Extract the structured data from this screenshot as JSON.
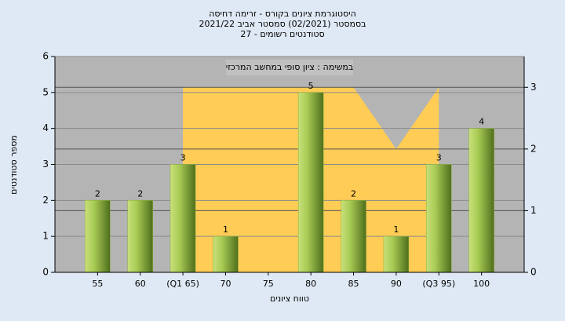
{
  "chart_data": {
    "type": "bar",
    "title": [
      "היסטוגרמת ציונים בקורס - זרימה דחיסה",
      "בסמסטר  (02/2021)  סמסטר אביב 2021/22",
      "סטודנטים רשומים - 27"
    ],
    "annotation": "במשימה : ציון סופי במחשב המרכזי",
    "x_label": "טווח ציונים",
    "y_label": "מספר סטודנטים",
    "categories": [
      "55",
      "60",
      "(Q1 65)",
      "70",
      "75",
      "80",
      "85",
      "90",
      "(Q3 95)",
      "100"
    ],
    "series": [
      {
        "type": "bar",
        "color": "#8fb43a",
        "values": [
          2,
          2,
          3,
          1,
          null,
          5,
          2,
          1,
          3,
          4
        ]
      },
      {
        "type": "area",
        "axis": "y2",
        "color": "#ffcc55",
        "values": [
          null,
          null,
          3,
          3,
          3,
          3,
          3,
          2,
          3,
          null
        ]
      }
    ],
    "ylim": [
      0,
      6
    ],
    "yticks": [
      0,
      1,
      2,
      3,
      4,
      5,
      6
    ],
    "y2lim": [
      0,
      3.5
    ],
    "y2ticks": [
      0,
      1,
      2,
      3
    ],
    "grid": true
  }
}
